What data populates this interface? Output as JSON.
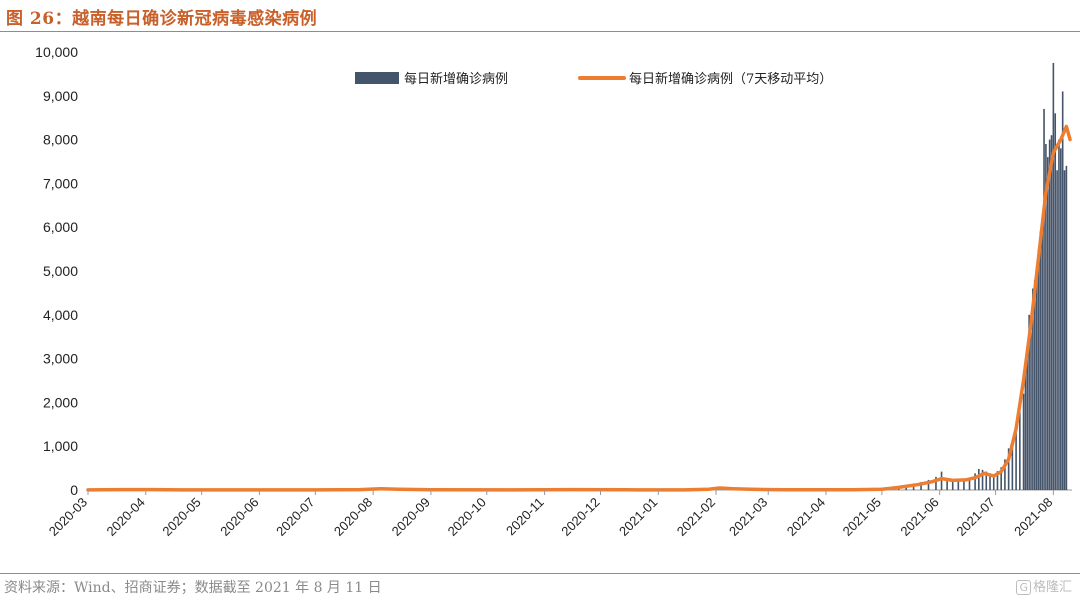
{
  "figure": {
    "title": "图 26：越南每日确诊新冠病毒感染病例",
    "source": "资料来源：Wind、招商证券；数据截至 2021 年 8 月 11 日",
    "watermark_text": "格隆汇",
    "watermark_mark": "G"
  },
  "colors": {
    "bar": "#44546a",
    "line": "#ed7d31",
    "accent": "#c8602a"
  },
  "chart_data": {
    "type": "bar+line",
    "title": "",
    "xlabel": "",
    "ylabel": "",
    "ylim": [
      0,
      10000
    ],
    "yticks": [
      "0",
      "1,000",
      "2,000",
      "3,000",
      "4,000",
      "5,000",
      "6,000",
      "7,000",
      "8,000",
      "9,000",
      "10,000"
    ],
    "xticks": [
      "2020-03",
      "2020-04",
      "2020-05",
      "2020-06",
      "2020-07",
      "2020-08",
      "2020-09",
      "2020-10",
      "2020-11",
      "2020-12",
      "2021-01",
      "2021-02",
      "2021-03",
      "2021-04",
      "2021-05",
      "2021-06",
      "2021-07",
      "2021-08"
    ],
    "x_range": [
      "2020-03-01",
      "2021-08-11"
    ],
    "legend_position": "top",
    "series": [
      {
        "name": "每日新增确诊病例",
        "kind": "bar",
        "points": [
          [
            "2021-05-10",
            60
          ],
          [
            "2021-05-14",
            110
          ],
          [
            "2021-05-18",
            150
          ],
          [
            "2021-05-22",
            180
          ],
          [
            "2021-05-26",
            230
          ],
          [
            "2021-05-30",
            300
          ],
          [
            "2021-06-02",
            420
          ],
          [
            "2021-06-05",
            250
          ],
          [
            "2021-06-08",
            200
          ],
          [
            "2021-06-11",
            260
          ],
          [
            "2021-06-14",
            230
          ],
          [
            "2021-06-17",
            280
          ],
          [
            "2021-06-20",
            380
          ],
          [
            "2021-06-22",
            480
          ],
          [
            "2021-06-24",
            460
          ],
          [
            "2021-06-26",
            420
          ],
          [
            "2021-06-28",
            380
          ],
          [
            "2021-06-30",
            320
          ],
          [
            "2021-07-02",
            430
          ],
          [
            "2021-07-04",
            520
          ],
          [
            "2021-07-06",
            700
          ],
          [
            "2021-07-08",
            950
          ],
          [
            "2021-07-10",
            1100
          ],
          [
            "2021-07-12",
            1400
          ],
          [
            "2021-07-14",
            1800
          ],
          [
            "2021-07-16",
            2200
          ],
          [
            "2021-07-17",
            2800
          ],
          [
            "2021-07-18",
            3200
          ],
          [
            "2021-07-19",
            4000
          ],
          [
            "2021-07-20",
            3600
          ],
          [
            "2021-07-21",
            4600
          ],
          [
            "2021-07-22",
            4800
          ],
          [
            "2021-07-23",
            5100
          ],
          [
            "2021-07-24",
            5500
          ],
          [
            "2021-07-25",
            5900
          ],
          [
            "2021-07-26",
            6200
          ],
          [
            "2021-07-27",
            8700
          ],
          [
            "2021-07-28",
            7900
          ],
          [
            "2021-07-29",
            7600
          ],
          [
            "2021-07-30",
            8000
          ],
          [
            "2021-07-31",
            8100
          ],
          [
            "2021-08-01",
            9750
          ],
          [
            "2021-08-02",
            8600
          ],
          [
            "2021-08-03",
            7300
          ],
          [
            "2021-08-04",
            8000
          ],
          [
            "2021-08-05",
            7800
          ],
          [
            "2021-08-06",
            9100
          ],
          [
            "2021-08-07",
            7300
          ],
          [
            "2021-08-08",
            7400
          ]
        ]
      },
      {
        "name": "每日新增确诊病例（7天移动平均）",
        "kind": "line",
        "points": [
          [
            "2020-03-01",
            2
          ],
          [
            "2020-03-20",
            8
          ],
          [
            "2020-04-05",
            10
          ],
          [
            "2020-04-20",
            3
          ],
          [
            "2020-05-15",
            2
          ],
          [
            "2020-07-01",
            2
          ],
          [
            "2020-07-25",
            10
          ],
          [
            "2020-08-05",
            30
          ],
          [
            "2020-08-15",
            18
          ],
          [
            "2020-09-01",
            5
          ],
          [
            "2020-10-15",
            3
          ],
          [
            "2020-11-15",
            8
          ],
          [
            "2020-12-15",
            5
          ],
          [
            "2021-01-15",
            2
          ],
          [
            "2021-01-28",
            15
          ],
          [
            "2021-02-03",
            45
          ],
          [
            "2021-02-10",
            30
          ],
          [
            "2021-02-20",
            15
          ],
          [
            "2021-03-10",
            5
          ],
          [
            "2021-04-15",
            5
          ],
          [
            "2021-05-01",
            15
          ],
          [
            "2021-05-10",
            60
          ],
          [
            "2021-05-20",
            120
          ],
          [
            "2021-05-28",
            190
          ],
          [
            "2021-06-02",
            260
          ],
          [
            "2021-06-08",
            220
          ],
          [
            "2021-06-15",
            230
          ],
          [
            "2021-06-20",
            280
          ],
          [
            "2021-06-25",
            380
          ],
          [
            "2021-06-30",
            320
          ],
          [
            "2021-07-04",
            420
          ],
          [
            "2021-07-08",
            700
          ],
          [
            "2021-07-12",
            1400
          ],
          [
            "2021-07-16",
            2500
          ],
          [
            "2021-07-20",
            3800
          ],
          [
            "2021-07-24",
            5300
          ],
          [
            "2021-07-28",
            6800
          ],
          [
            "2021-08-01",
            7700
          ],
          [
            "2021-08-05",
            8000
          ],
          [
            "2021-08-08",
            8300
          ],
          [
            "2021-08-10",
            8000
          ]
        ]
      }
    ]
  }
}
